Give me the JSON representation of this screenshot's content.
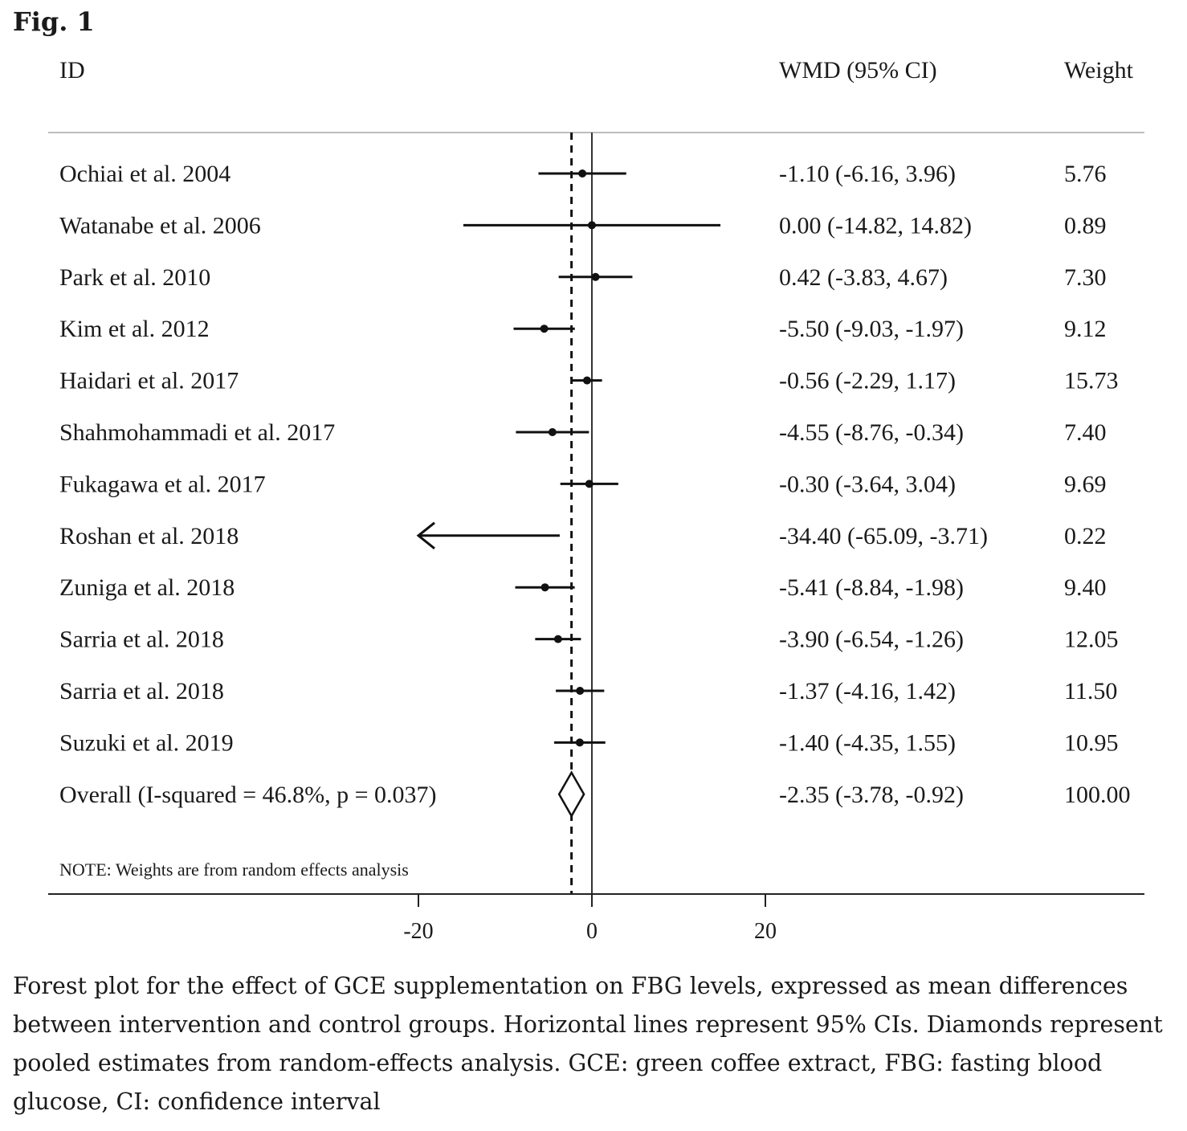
{
  "figure_label": "Fig. 1",
  "caption": "Forest plot for the effect of GCE supplementation on FBG levels, expressed as mean differences between intervention and control groups. Horizontal lines represent 95% CIs. Diamonds represent pooled estimates from random-effects analysis. GCE: green coffee extract, FBG: fasting blood glucose, CI: confidence interval",
  "chart_data": {
    "type": "forest",
    "columns": {
      "id": "ID",
      "effect": "WMD (95% CI)",
      "weight": "Weight"
    },
    "studies": [
      {
        "id": "Ochiai et al. 2004",
        "wmd": -1.1,
        "lo": -6.16,
        "hi": 3.96,
        "label": "-1.10 (-6.16, 3.96)",
        "weight": "5.76"
      },
      {
        "id": "Watanabe et al. 2006",
        "wmd": 0.0,
        "lo": -14.82,
        "hi": 14.82,
        "label": "0.00 (-14.82, 14.82)",
        "weight": "0.89"
      },
      {
        "id": "Park et al. 2010",
        "wmd": 0.42,
        "lo": -3.83,
        "hi": 4.67,
        "label": "0.42 (-3.83, 4.67)",
        "weight": "7.30"
      },
      {
        "id": "Kim et al. 2012",
        "wmd": -5.5,
        "lo": -9.03,
        "hi": -1.97,
        "label": "-5.50 (-9.03, -1.97)",
        "weight": "9.12"
      },
      {
        "id": "Haidari et al. 2017",
        "wmd": -0.56,
        "lo": -2.29,
        "hi": 1.17,
        "label": "-0.56 (-2.29, 1.17)",
        "weight": "15.73"
      },
      {
        "id": "Shahmohammadi et al. 2017",
        "wmd": -4.55,
        "lo": -8.76,
        "hi": -0.34,
        "label": "-4.55 (-8.76, -0.34)",
        "weight": "7.40"
      },
      {
        "id": "Fukagawa et al. 2017",
        "wmd": -0.3,
        "lo": -3.64,
        "hi": 3.04,
        "label": "-0.30 (-3.64, 3.04)",
        "weight": "9.69"
      },
      {
        "id": "Roshan et al. 2018",
        "wmd": -34.4,
        "lo": -65.09,
        "hi": -3.71,
        "label": "-34.40 (-65.09, -3.71)",
        "weight": "0.22"
      },
      {
        "id": "Zuniga et al. 2018",
        "wmd": -5.41,
        "lo": -8.84,
        "hi": -1.98,
        "label": "-5.41 (-8.84, -1.98)",
        "weight": "9.40"
      },
      {
        "id": "Sarria et al. 2018",
        "wmd": -3.9,
        "lo": -6.54,
        "hi": -1.26,
        "label": "-3.90 (-6.54, -1.26)",
        "weight": "12.05"
      },
      {
        "id": "Sarria et al. 2018",
        "wmd": -1.37,
        "lo": -4.16,
        "hi": 1.42,
        "label": "-1.37 (-4.16, 1.42)",
        "weight": "11.50"
      },
      {
        "id": "Suzuki et al. 2019",
        "wmd": -1.4,
        "lo": -4.35,
        "hi": 1.55,
        "label": "-1.40 (-4.35, 1.55)",
        "weight": "10.95"
      }
    ],
    "overall": {
      "id": "Overall  (I-squared = 46.8%, p = 0.037)",
      "wmd": -2.35,
      "lo": -3.78,
      "hi": -0.92,
      "label": "-2.35 (-3.78, -0.92)",
      "weight": "100.00"
    },
    "note": "NOTE: Weights are from random effects analysis",
    "xticks": [
      -20,
      0,
      20
    ],
    "xtick_labels": [
      "-20",
      "0",
      "20"
    ],
    "xlim": [
      -20,
      20
    ],
    "null_line": 0,
    "pooled_line": -2.35
  }
}
